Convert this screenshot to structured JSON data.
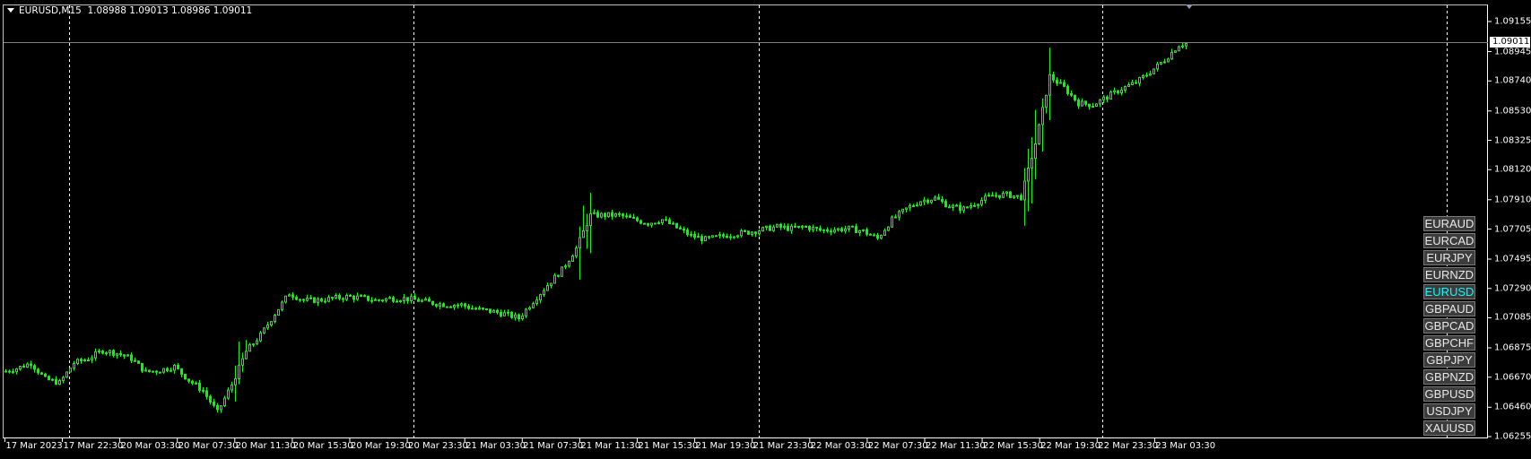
{
  "header": {
    "symbol_timeframe": "EURUSD,M15",
    "ohlc": "1.08988 1.09013 1.08986 1.09011"
  },
  "current_price": "1.09011",
  "symbol_buttons": [
    {
      "label": "EURAUD",
      "active": false
    },
    {
      "label": "EURCAD",
      "active": false
    },
    {
      "label": "EURJPY",
      "active": false
    },
    {
      "label": "EURNZD",
      "active": false
    },
    {
      "label": "EURUSD",
      "active": true
    },
    {
      "label": "GBPAUD",
      "active": false
    },
    {
      "label": "GBPCAD",
      "active": false
    },
    {
      "label": "GBPCHF",
      "active": false
    },
    {
      "label": "GBPJPY",
      "active": false
    },
    {
      "label": "GBPNZD",
      "active": false
    },
    {
      "label": "GBPUSD",
      "active": false
    },
    {
      "label": "USDJPY",
      "active": false
    },
    {
      "label": "XAUUSD",
      "active": false
    }
  ],
  "colors": {
    "background": "#000000",
    "candle": "#00ff00",
    "grid_separator": "#ffffff",
    "price_line": "#808080",
    "active_symbol": "#00ffff"
  },
  "chart_data": {
    "type": "candlestick",
    "timeframe": "M15",
    "ylim": [
      1.06255,
      1.09155
    ],
    "y_ticks": [
      "1.09155",
      "1.08945",
      "1.08740",
      "1.08530",
      "1.08325",
      "1.08120",
      "1.07910",
      "1.07705",
      "1.07495",
      "1.07290",
      "1.07085",
      "1.06875",
      "1.06670",
      "1.06460",
      "1.06255"
    ],
    "x_ticks": [
      "17 Mar 2023",
      "17 Mar 22:30",
      "20 Mar 03:30",
      "20 Mar 07:30",
      "20 Mar 11:30",
      "20 Mar 15:30",
      "20 Mar 19:30",
      "20 Mar 23:30",
      "21 Mar 03:30",
      "21 Mar 07:30",
      "21 Mar 11:30",
      "21 Mar 15:30",
      "21 Mar 19:30",
      "21 Mar 23:30",
      "22 Mar 03:30",
      "22 Mar 07:30",
      "22 Mar 11:30",
      "22 Mar 15:30",
      "22 Mar 19:30",
      "22 Mar 23:30",
      "23 Mar 03:30"
    ],
    "hourly_closes": [
      1.06706,
      1.06731,
      1.06769,
      1.06656,
      1.06631,
      1.06769,
      1.068,
      1.06857,
      1.06838,
      1.068,
      1.06706,
      1.06719,
      1.06744,
      1.0665,
      1.06575,
      1.06424,
      1.06619,
      1.0685,
      1.06963,
      1.07113,
      1.07257,
      1.07207,
      1.07207,
      1.0722,
      1.07232,
      1.07226,
      1.07207,
      1.0722,
      1.0722,
      1.07207,
      1.07188,
      1.07176,
      1.07176,
      1.07145,
      1.07132,
      1.07113,
      1.07082,
      1.07201,
      1.07314,
      1.0742,
      1.0757,
      1.07802,
      1.07802,
      1.07802,
      1.07771,
      1.07746,
      1.07771,
      1.07714,
      1.07658,
      1.07633,
      1.07652,
      1.07671,
      1.07683,
      1.07702,
      1.07721,
      1.07708,
      1.07721,
      1.07696,
      1.07702,
      1.07708,
      1.0769,
      1.07639,
      1.07771,
      1.07846,
      1.07902,
      1.07921,
      1.07865,
      1.07846,
      1.07896,
      1.0794,
      1.07946,
      1.07927,
      1.08303,
      1.08773,
      1.08692,
      1.08585,
      1.08573,
      1.08629,
      1.08685,
      1.08729,
      1.08804,
      1.08886,
      1.08992,
      1.09011
    ],
    "last": {
      "open": 1.08988,
      "high": 1.09013,
      "low": 1.08986,
      "close": 1.09011
    }
  }
}
